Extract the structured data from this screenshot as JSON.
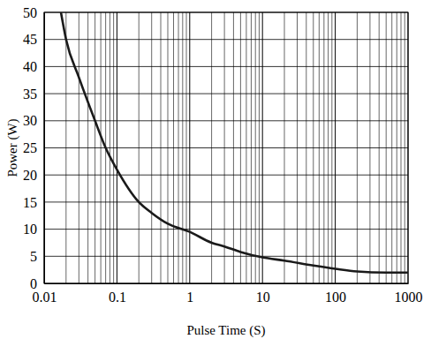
{
  "chart_data": {
    "type": "line",
    "x_label": "Pulse Time (S)",
    "y_label": "Power (W)",
    "x": [
      0.017,
      0.02,
      0.03,
      0.05,
      0.07,
      0.1,
      0.2,
      0.3,
      0.5,
      1,
      2,
      3,
      5,
      10,
      20,
      50,
      100,
      200,
      500,
      1000
    ],
    "series": [
      {
        "color": "#1a1a1a",
        "values": [
          50,
          45,
          38,
          30,
          25,
          21,
          15,
          13,
          11,
          9.5,
          7.5,
          6.8,
          5.8,
          4.8,
          4.2,
          3.3,
          2.7,
          2.2,
          2.0,
          2.0
        ]
      }
    ],
    "xlim": [
      0.01,
      1000
    ],
    "ylim": [
      0,
      50
    ],
    "xticks": [
      0.01,
      0.1,
      1,
      10,
      100,
      1000
    ],
    "yticks": [
      0,
      5,
      10,
      15,
      20,
      25,
      30,
      35,
      40,
      45,
      50
    ],
    "log": "x",
    "grid": true
  }
}
